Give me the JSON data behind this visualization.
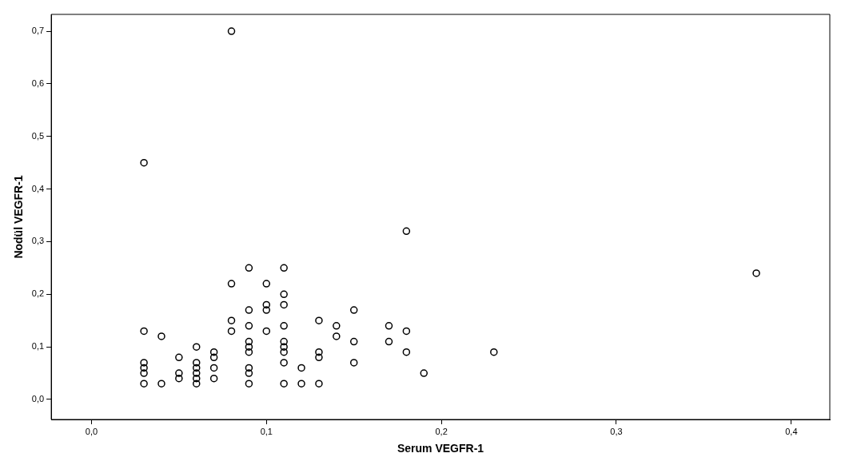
{
  "chart_data": {
    "type": "scatter",
    "xlabel": "Serum VEGFR-1",
    "ylabel": "Nodül VEGFR-1",
    "xlim": [
      -0.023,
      0.422
    ],
    "ylim": [
      -0.038,
      0.732
    ],
    "xticks": [
      {
        "value": 0,
        "label": "0,0"
      },
      {
        "value": 0.1,
        "label": "0,1"
      },
      {
        "value": 0.2,
        "label": "0,2"
      },
      {
        "value": 0.3,
        "label": "0,3"
      },
      {
        "value": 0.4,
        "label": "0,4"
      }
    ],
    "yticks": [
      {
        "value": 0,
        "label": "0,0"
      },
      {
        "value": 0.1,
        "label": "0,1"
      },
      {
        "value": 0.2,
        "label": "0,2"
      },
      {
        "value": 0.3,
        "label": "0,3"
      },
      {
        "value": 0.4,
        "label": "0,4"
      },
      {
        "value": 0.5,
        "label": "0,5"
      },
      {
        "value": 0.6,
        "label": "0,6"
      },
      {
        "value": 0.7,
        "label": "0,7"
      }
    ],
    "grid": false,
    "legend": false,
    "marker": "circle",
    "series": [
      {
        "color": "#000000",
        "x": [
          0.03,
          0.03,
          0.03,
          0.03,
          0.03,
          0.03,
          0.04,
          0.04,
          0.05,
          0.05,
          0.05,
          0.06,
          0.06,
          0.06,
          0.06,
          0.06,
          0.06,
          0.07,
          0.07,
          0.07,
          0.07,
          0.08,
          0.08,
          0.08,
          0.08,
          0.09,
          0.09,
          0.09,
          0.09,
          0.09,
          0.09,
          0.09,
          0.09,
          0.09,
          0.1,
          0.1,
          0.1,
          0.1,
          0.11,
          0.11,
          0.11,
          0.11,
          0.11,
          0.11,
          0.11,
          0.11,
          0.11,
          0.12,
          0.12,
          0.13,
          0.13,
          0.13,
          0.13,
          0.14,
          0.14,
          0.15,
          0.15,
          0.15,
          0.17,
          0.17,
          0.18,
          0.18,
          0.18,
          0.19,
          0.23,
          0.38
        ],
        "values": [
          0.45,
          0.13,
          0.07,
          0.06,
          0.05,
          0.03,
          0.12,
          0.03,
          0.08,
          0.05,
          0.04,
          0.1,
          0.07,
          0.06,
          0.05,
          0.04,
          0.03,
          0.09,
          0.08,
          0.06,
          0.04,
          0.7,
          0.22,
          0.15,
          0.13,
          0.25,
          0.17,
          0.14,
          0.11,
          0.1,
          0.09,
          0.06,
          0.05,
          0.03,
          0.22,
          0.18,
          0.17,
          0.13,
          0.25,
          0.2,
          0.18,
          0.14,
          0.11,
          0.1,
          0.09,
          0.07,
          0.03,
          0.06,
          0.03,
          0.15,
          0.09,
          0.08,
          0.03,
          0.14,
          0.12,
          0.17,
          0.11,
          0.07,
          0.14,
          0.11,
          0.32,
          0.13,
          0.09,
          0.05,
          0.09,
          0.24
        ]
      }
    ]
  }
}
